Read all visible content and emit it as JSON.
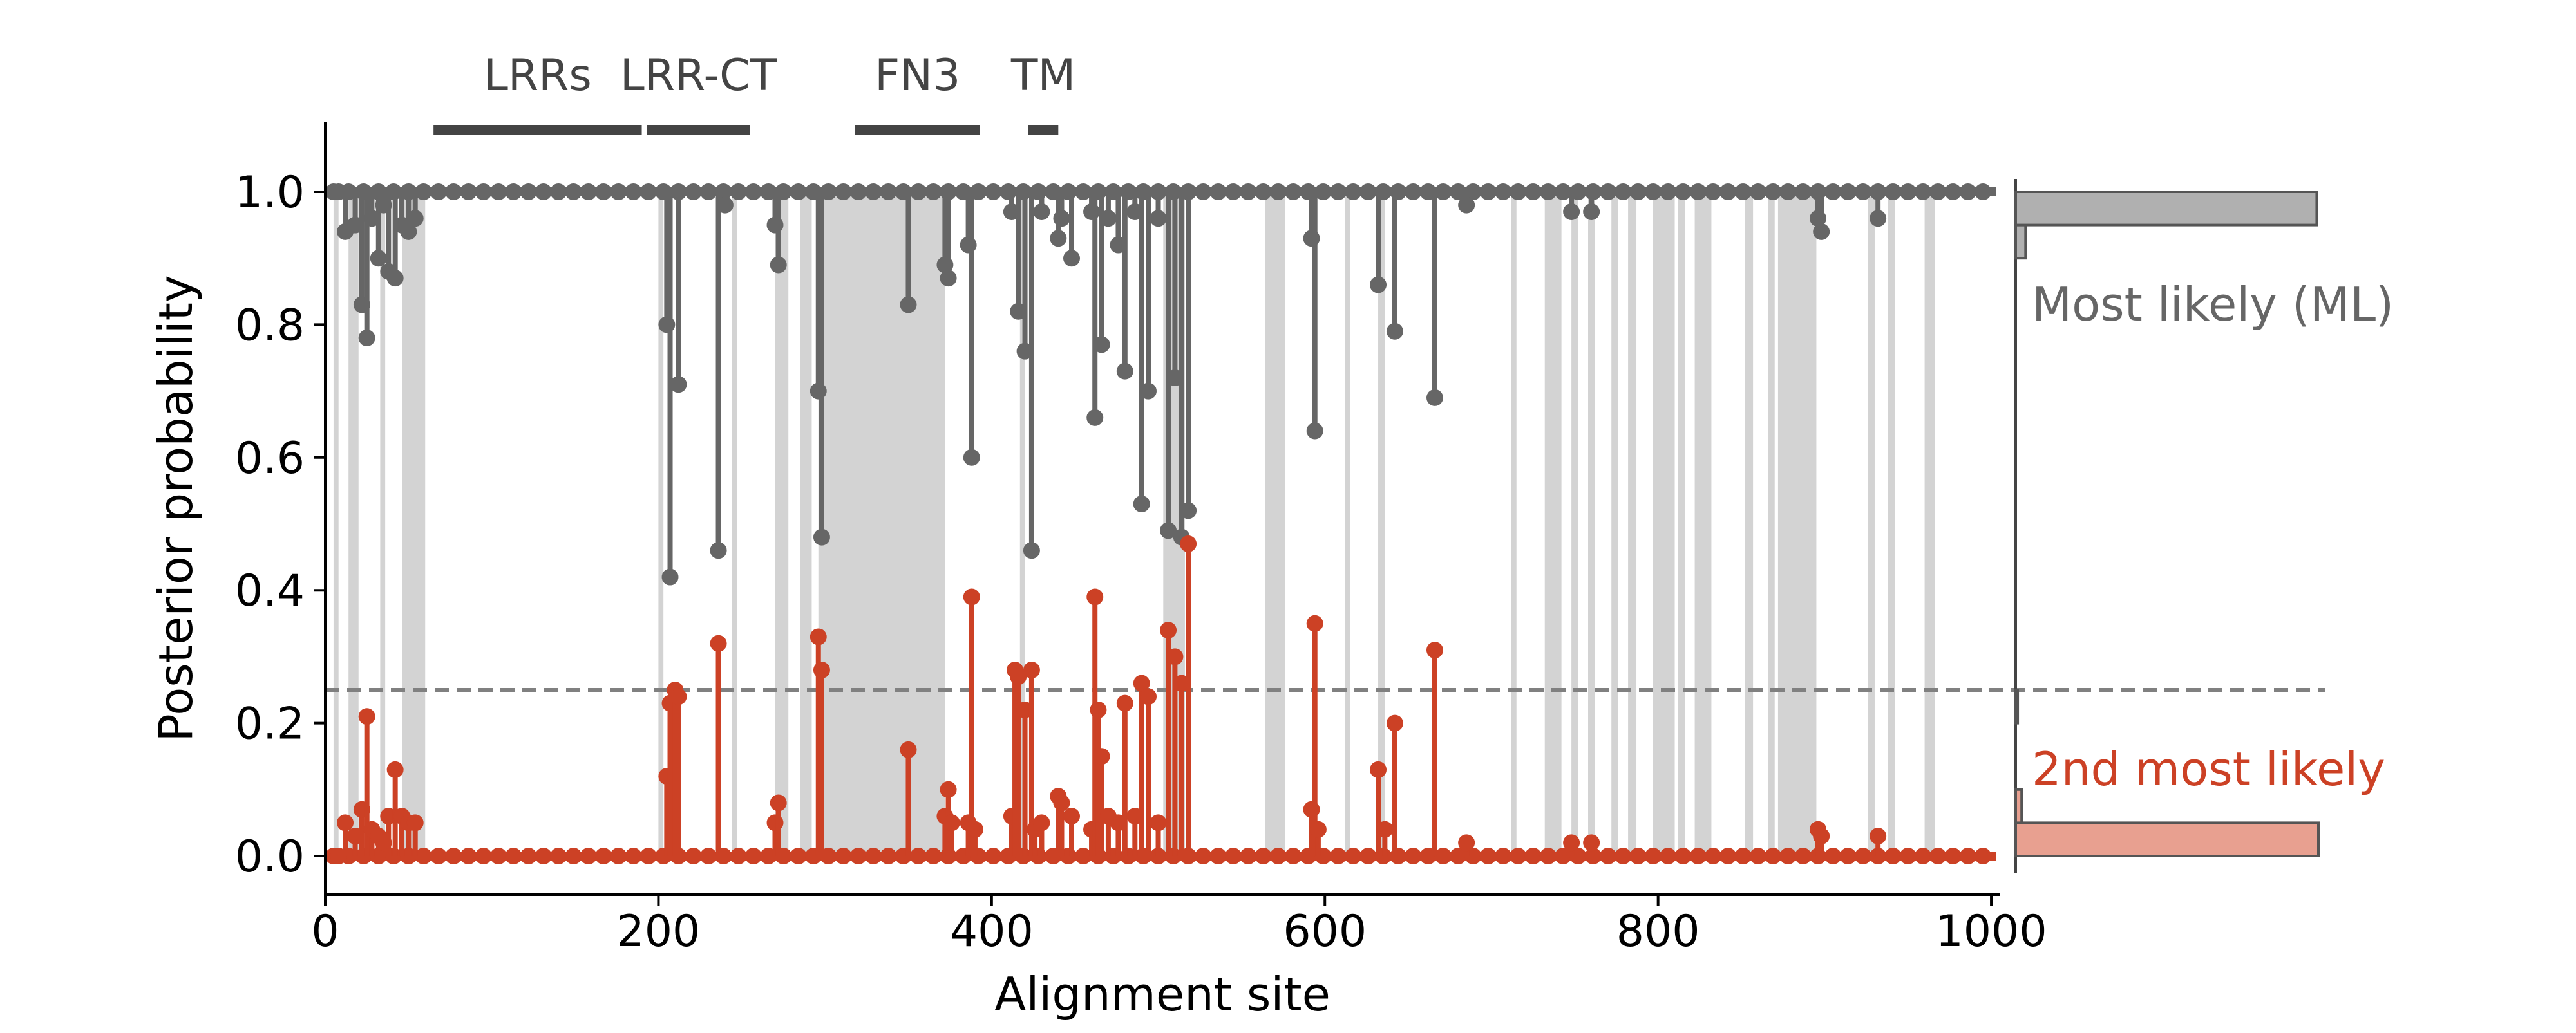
{
  "chart_data": {
    "type": "scatter",
    "xlabel": "Alignment site",
    "ylabel": "Posterior probability",
    "xlim": [
      0,
      1005
    ],
    "ylim": [
      -0.06,
      1.1
    ],
    "x_ticks": [
      0,
      200,
      400,
      600,
      800,
      1000
    ],
    "x_tick_labels": [
      "0",
      "200",
      "400",
      "600",
      "800",
      "1000"
    ],
    "y_ticks": [
      0.0,
      0.2,
      0.4,
      0.6,
      0.8,
      1.0
    ],
    "y_tick_labels": [
      "0.0",
      "0.2",
      "0.4",
      "0.6",
      "0.8",
      "1.0"
    ],
    "threshold": 0.25,
    "domains": [
      {
        "label": "LRRs",
        "start": 65,
        "end": 190
      },
      {
        "label": "LRR-CT",
        "start": 193,
        "end": 255
      },
      {
        "label": "FN3",
        "start": 318,
        "end": 393
      },
      {
        "label": "TM",
        "start": 422,
        "end": 440
      }
    ],
    "shaded_regions": [
      [
        5,
        8
      ],
      [
        14,
        20
      ],
      [
        33,
        36
      ],
      [
        46,
        60
      ],
      [
        200,
        203
      ],
      [
        244,
        247
      ],
      [
        270,
        278
      ],
      [
        285,
        292
      ],
      [
        296,
        372
      ],
      [
        417,
        420
      ],
      [
        503,
        516
      ],
      [
        564,
        576
      ],
      [
        612,
        615
      ],
      [
        632,
        636
      ],
      [
        712,
        715
      ],
      [
        732,
        742
      ],
      [
        748,
        752
      ],
      [
        758,
        762
      ],
      [
        772,
        776
      ],
      [
        782,
        787
      ],
      [
        797,
        810
      ],
      [
        812,
        816
      ],
      [
        822,
        832
      ],
      [
        852,
        857
      ],
      [
        866,
        870
      ],
      [
        872,
        895
      ],
      [
        926,
        930
      ],
      [
        938,
        942
      ],
      [
        960,
        966
      ]
    ],
    "series": [
      {
        "name": "Most likely (ML)",
        "color": "#666666",
        "points": [
          [
            8,
            1.0
          ],
          [
            12,
            0.94
          ],
          [
            18,
            0.95
          ],
          [
            22,
            0.83
          ],
          [
            25,
            0.78
          ],
          [
            28,
            0.96
          ],
          [
            32,
            0.9
          ],
          [
            35,
            0.98
          ],
          [
            38,
            0.88
          ],
          [
            42,
            0.87
          ],
          [
            46,
            0.95
          ],
          [
            50,
            0.94
          ],
          [
            54,
            0.96
          ],
          [
            205,
            0.8
          ],
          [
            207,
            0.42
          ],
          [
            212,
            0.71
          ],
          [
            236,
            0.46
          ],
          [
            240,
            0.98
          ],
          [
            270,
            0.95
          ],
          [
            272,
            0.89
          ],
          [
            296,
            0.7
          ],
          [
            298,
            0.48
          ],
          [
            350,
            0.83
          ],
          [
            372,
            0.89
          ],
          [
            374,
            0.87
          ],
          [
            386,
            0.92
          ],
          [
            388,
            0.6
          ],
          [
            412,
            0.97
          ],
          [
            416,
            0.82
          ],
          [
            420,
            0.76
          ],
          [
            424,
            0.46
          ],
          [
            430,
            0.97
          ],
          [
            440,
            0.93
          ],
          [
            442,
            0.96
          ],
          [
            448,
            0.9
          ],
          [
            460,
            0.97
          ],
          [
            462,
            0.66
          ],
          [
            466,
            0.77
          ],
          [
            470,
            0.96
          ],
          [
            476,
            0.92
          ],
          [
            480,
            0.73
          ],
          [
            486,
            0.97
          ],
          [
            490,
            0.53
          ],
          [
            494,
            0.7
          ],
          [
            500,
            0.96
          ],
          [
            506,
            0.49
          ],
          [
            510,
            0.72
          ],
          [
            514,
            0.48
          ],
          [
            518,
            0.52
          ],
          [
            592,
            0.93
          ],
          [
            594,
            0.64
          ],
          [
            632,
            0.86
          ],
          [
            642,
            0.79
          ],
          [
            666,
            0.69
          ],
          [
            685,
            0.98
          ],
          [
            748,
            0.97
          ],
          [
            760,
            0.97
          ],
          [
            896,
            0.96
          ],
          [
            898,
            0.94
          ],
          [
            932,
            0.96
          ]
        ]
      },
      {
        "name": "2nd most likely",
        "color": "#cc4125",
        "points": [
          [
            8,
            0.0
          ],
          [
            12,
            0.05
          ],
          [
            18,
            0.03
          ],
          [
            22,
            0.07
          ],
          [
            25,
            0.21
          ],
          [
            28,
            0.04
          ],
          [
            32,
            0.03
          ],
          [
            35,
            0.02
          ],
          [
            38,
            0.06
          ],
          [
            42,
            0.13
          ],
          [
            46,
            0.06
          ],
          [
            50,
            0.05
          ],
          [
            54,
            0.05
          ],
          [
            205,
            0.12
          ],
          [
            207,
            0.23
          ],
          [
            210,
            0.25
          ],
          [
            212,
            0.24
          ],
          [
            236,
            0.32
          ],
          [
            270,
            0.05
          ],
          [
            272,
            0.08
          ],
          [
            296,
            0.33
          ],
          [
            298,
            0.28
          ],
          [
            350,
            0.16
          ],
          [
            372,
            0.06
          ],
          [
            374,
            0.1
          ],
          [
            376,
            0.05
          ],
          [
            386,
            0.05
          ],
          [
            388,
            0.39
          ],
          [
            390,
            0.04
          ],
          [
            412,
            0.06
          ],
          [
            414,
            0.28
          ],
          [
            416,
            0.27
          ],
          [
            420,
            0.22
          ],
          [
            424,
            0.28
          ],
          [
            426,
            0.04
          ],
          [
            430,
            0.05
          ],
          [
            440,
            0.09
          ],
          [
            442,
            0.08
          ],
          [
            448,
            0.06
          ],
          [
            460,
            0.04
          ],
          [
            462,
            0.39
          ],
          [
            464,
            0.22
          ],
          [
            466,
            0.15
          ],
          [
            470,
            0.06
          ],
          [
            476,
            0.05
          ],
          [
            480,
            0.23
          ],
          [
            486,
            0.06
          ],
          [
            490,
            0.26
          ],
          [
            494,
            0.24
          ],
          [
            500,
            0.05
          ],
          [
            506,
            0.34
          ],
          [
            510,
            0.3
          ],
          [
            514,
            0.26
          ],
          [
            518,
            0.47
          ],
          [
            592,
            0.07
          ],
          [
            594,
            0.35
          ],
          [
            596,
            0.04
          ],
          [
            632,
            0.13
          ],
          [
            636,
            0.04
          ],
          [
            642,
            0.2
          ],
          [
            666,
            0.31
          ],
          [
            685,
            0.02
          ],
          [
            748,
            0.02
          ],
          [
            760,
            0.02
          ],
          [
            896,
            0.04
          ],
          [
            898,
            0.03
          ],
          [
            932,
            0.03
          ]
        ]
      }
    ],
    "side_histogram": {
      "bins": [
        {
          "range": [
            0.0,
            0.05
          ],
          "count": 920
        },
        {
          "range": [
            0.05,
            0.1
          ],
          "count": 18
        },
        {
          "range": [
            0.2,
            0.25
          ],
          "count": 6
        },
        {
          "range": [
            0.9,
            0.95
          ],
          "count": 30
        },
        {
          "range": [
            0.95,
            1.0
          ],
          "count": 915
        }
      ]
    }
  }
}
